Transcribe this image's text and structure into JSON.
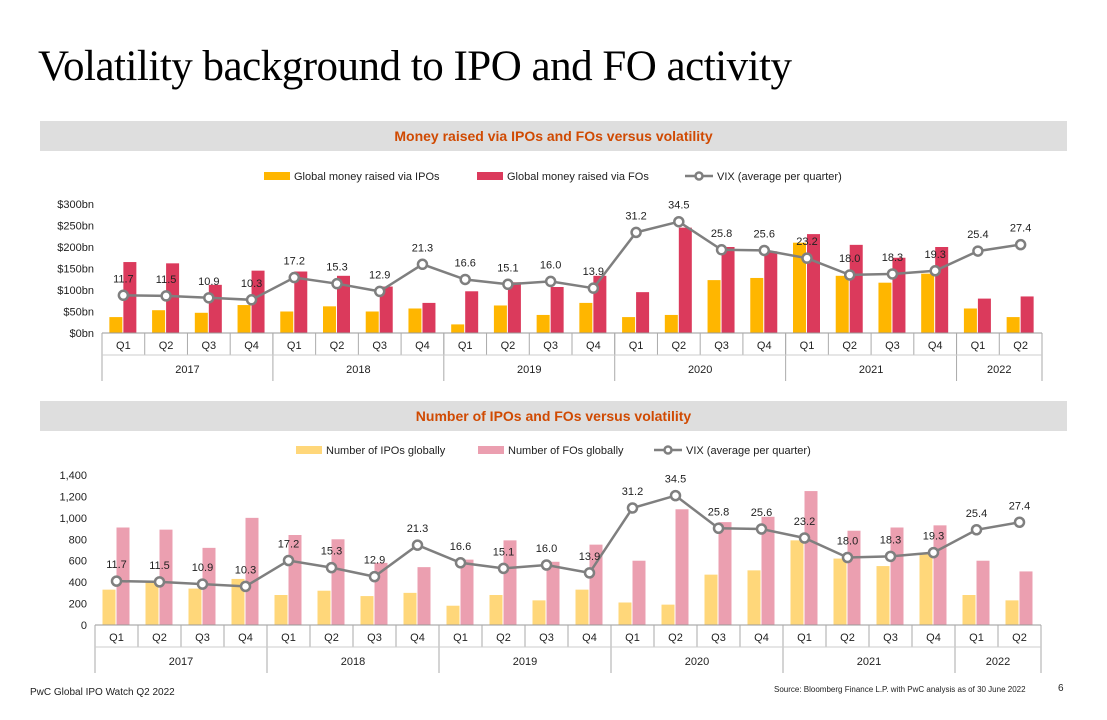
{
  "title": "Volatility background to IPO and FO activity",
  "footer": {
    "left": "PwC Global IPO Watch Q2 2022",
    "source": "Source: Bloomberg Finance L.P. with PwC analysis as of 30 June 2022",
    "page": "6"
  },
  "colors": {
    "ipo_money": "#ffb600",
    "fo_money": "#db3a5c",
    "ipo_count": "#ffd77a",
    "fo_count": "#eb9fb0",
    "vix": "#7f7f7f",
    "band_text": "#d04a02",
    "band_bg": "#dedede"
  },
  "chart_data": [
    {
      "type": "bar",
      "title": "Money raised via IPOs and FOs versus volatility",
      "quarters": [
        "Q1",
        "Q2",
        "Q3",
        "Q4",
        "Q1",
        "Q2",
        "Q3",
        "Q4",
        "Q1",
        "Q2",
        "Q3",
        "Q4",
        "Q1",
        "Q2",
        "Q3",
        "Q4",
        "Q1",
        "Q2",
        "Q3",
        "Q4",
        "Q1",
        "Q2"
      ],
      "years": [
        "2017",
        "2018",
        "2019",
        "2020",
        "2021",
        "2022"
      ],
      "year_quarter_counts": [
        4,
        4,
        4,
        4,
        4,
        2
      ],
      "y_ticks": [
        "$0bn",
        "$50bn",
        "$100bn",
        "$150bn",
        "$200bn",
        "$250bn",
        "$300bn"
      ],
      "ylim": [
        0,
        300
      ],
      "series": [
        {
          "name": "Global money raised via IPOs",
          "values": [
            37,
            53,
            47,
            65,
            50,
            62,
            50,
            57,
            20,
            64,
            42,
            70,
            37,
            42,
            123,
            128,
            210,
            133,
            117,
            138,
            57,
            37
          ]
        },
        {
          "name": "Global money raised via FOs",
          "values": [
            165,
            162,
            112,
            145,
            143,
            133,
            108,
            70,
            97,
            118,
            107,
            133,
            95,
            245,
            200,
            190,
            230,
            205,
            175,
            200,
            80,
            85
          ]
        }
      ],
      "vix": {
        "name": "VIX (average per quarter)",
        "values": [
          11.7,
          11.5,
          10.9,
          10.3,
          17.2,
          15.3,
          12.9,
          21.3,
          16.6,
          15.1,
          16.0,
          13.9,
          31.2,
          34.5,
          25.8,
          25.6,
          23.2,
          18.0,
          18.3,
          19.3,
          25.4,
          27.4
        ],
        "labels": [
          "11.7",
          "11.5",
          "10.9",
          "10.3",
          "17.2",
          "15.3",
          "12.9",
          "21.3",
          "16.6",
          "15.1",
          "16.0",
          "13.9",
          "31.2",
          "34.5",
          "25.8",
          "25.6",
          "23.2",
          "18.0",
          "18.3",
          "19.3",
          "25.4",
          "27.4"
        ],
        "plot_range": [
          0,
          40
        ]
      }
    },
    {
      "type": "bar",
      "title": "Number of IPOs and FOs versus volatility",
      "quarters": [
        "Q1",
        "Q2",
        "Q3",
        "Q4",
        "Q1",
        "Q2",
        "Q3",
        "Q4",
        "Q1",
        "Q2",
        "Q3",
        "Q4",
        "Q1",
        "Q2",
        "Q3",
        "Q4",
        "Q1",
        "Q2",
        "Q3",
        "Q4",
        "Q1",
        "Q2"
      ],
      "years": [
        "2017",
        "2018",
        "2019",
        "2020",
        "2021",
        "2022"
      ],
      "year_quarter_counts": [
        4,
        4,
        4,
        4,
        4,
        2
      ],
      "y_ticks": [
        "0",
        "200",
        "400",
        "600",
        "800",
        "1,000",
        "1,200",
        "1,400"
      ],
      "ylim": [
        0,
        1400
      ],
      "series": [
        {
          "name": "Number of IPOs globally",
          "values": [
            330,
            400,
            340,
            430,
            280,
            320,
            270,
            300,
            180,
            280,
            230,
            330,
            210,
            190,
            470,
            510,
            790,
            620,
            550,
            670,
            280,
            230
          ]
        },
        {
          "name": "Number of FOs globally",
          "values": [
            910,
            890,
            720,
            1000,
            840,
            800,
            580,
            540,
            610,
            790,
            590,
            750,
            600,
            1080,
            960,
            1010,
            1250,
            880,
            910,
            930,
            600,
            500
          ]
        }
      ],
      "vix": {
        "name": "VIX (average per quarter)",
        "values": [
          11.7,
          11.5,
          10.9,
          10.3,
          17.2,
          15.3,
          12.9,
          21.3,
          16.6,
          15.1,
          16.0,
          13.9,
          31.2,
          34.5,
          25.8,
          25.6,
          23.2,
          18.0,
          18.3,
          19.3,
          25.4,
          27.4
        ],
        "labels": [
          "11.7",
          "11.5",
          "10.9",
          "10.3",
          "17.2",
          "15.3",
          "12.9",
          "21.3",
          "16.6",
          "15.1",
          "16.0",
          "13.9",
          "31.2",
          "34.5",
          "25.8",
          "25.6",
          "23.2",
          "18.0",
          "18.3",
          "19.3",
          "25.4",
          "27.4"
        ],
        "plot_range": [
          0,
          40
        ]
      }
    }
  ]
}
